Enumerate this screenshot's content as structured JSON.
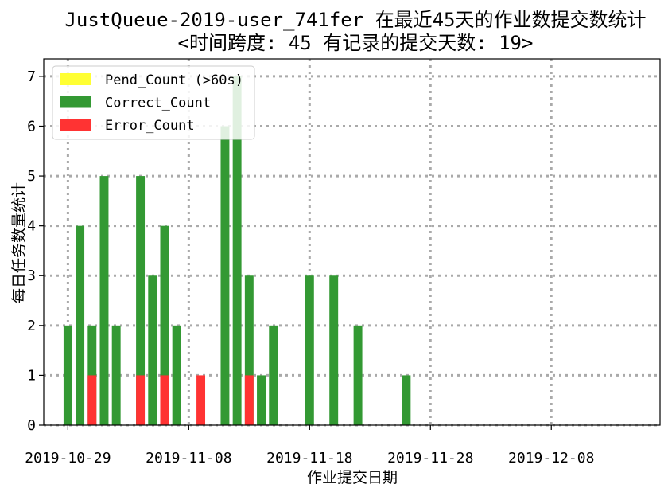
{
  "chart_data": {
    "type": "bar",
    "stacked": false,
    "title": "JustQueue-2019-user_741fer 在最近45天的作业数提交数统计",
    "subtitle": "<时间跨度: 45  有记录的提交天数: 19>",
    "xlabel": "作业提交日期",
    "ylabel": "每日任务数量统计",
    "x_start": "2019-10-28",
    "x_end": "2019-12-16",
    "xlim": [
      "2019-10-27",
      "2019-12-17"
    ],
    "ylim": [
      0,
      7.35
    ],
    "xticks": [
      "2019-10-29",
      "2019-11-08",
      "2019-11-18",
      "2019-11-28",
      "2019-12-08"
    ],
    "yticks": [
      0,
      1,
      2,
      3,
      4,
      5,
      6,
      7
    ],
    "grid": true,
    "legend_position": "top-left",
    "series": [
      {
        "name": "Pend_Count (>60s)",
        "color": "#ffff33",
        "points": []
      },
      {
        "name": "Correct_Count",
        "color": "#339933",
        "points": [
          {
            "date": "2019-10-29",
            "value": 2
          },
          {
            "date": "2019-10-30",
            "value": 4
          },
          {
            "date": "2019-10-31",
            "value": 2
          },
          {
            "date": "2019-11-01",
            "value": 5
          },
          {
            "date": "2019-11-02",
            "value": 2
          },
          {
            "date": "2019-11-04",
            "value": 5
          },
          {
            "date": "2019-11-05",
            "value": 3
          },
          {
            "date": "2019-11-06",
            "value": 4
          },
          {
            "date": "2019-11-07",
            "value": 2
          },
          {
            "date": "2019-11-11",
            "value": 6
          },
          {
            "date": "2019-11-12",
            "value": 7
          },
          {
            "date": "2019-11-13",
            "value": 3
          },
          {
            "date": "2019-11-14",
            "value": 1
          },
          {
            "date": "2019-11-15",
            "value": 2
          },
          {
            "date": "2019-11-18",
            "value": 3
          },
          {
            "date": "2019-11-20",
            "value": 3
          },
          {
            "date": "2019-11-22",
            "value": 2
          },
          {
            "date": "2019-11-26",
            "value": 1
          }
        ]
      },
      {
        "name": "Error_Count",
        "color": "#ff3333",
        "points": [
          {
            "date": "2019-10-31",
            "value": 1
          },
          {
            "date": "2019-11-04",
            "value": 1
          },
          {
            "date": "2019-11-06",
            "value": 1
          },
          {
            "date": "2019-11-09",
            "value": 1
          },
          {
            "date": "2019-11-13",
            "value": 1
          }
        ]
      }
    ]
  }
}
